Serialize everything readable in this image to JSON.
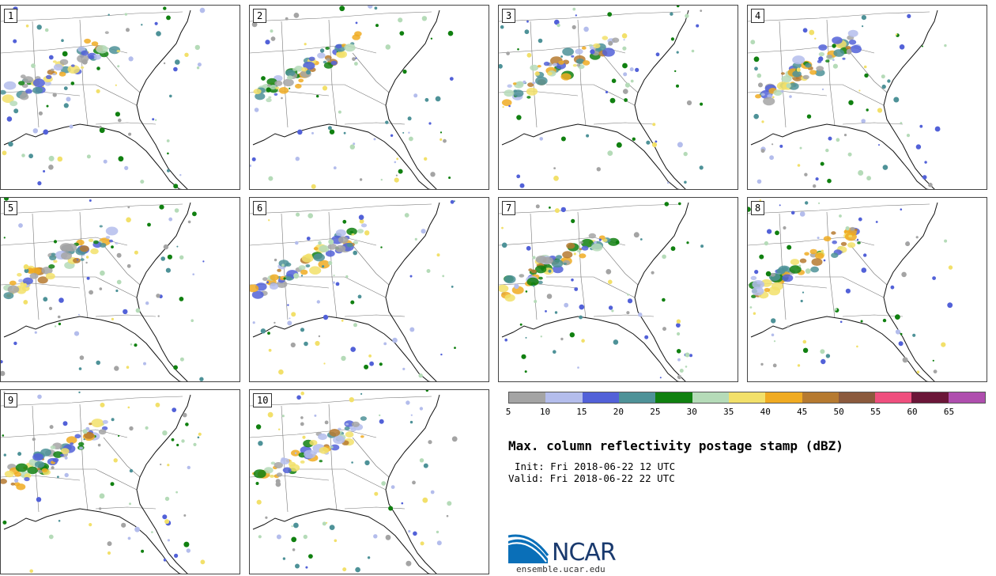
{
  "panels": [
    {
      "label": "1"
    },
    {
      "label": "2"
    },
    {
      "label": "3"
    },
    {
      "label": "4"
    },
    {
      "label": "5"
    },
    {
      "label": "6"
    },
    {
      "label": "7"
    },
    {
      "label": "8"
    },
    {
      "label": "9"
    },
    {
      "label": "10"
    }
  ],
  "legend": {
    "colors": [
      "#a4a4a4",
      "#b4bdec",
      "#5261d8",
      "#4e9298",
      "#108010",
      "#b5dbb8",
      "#f2e06a",
      "#f0ab22",
      "#b67a30",
      "#8b5a3d",
      "#ef4f7e",
      "#6b1638",
      "#af4eae"
    ],
    "ticks": [
      "5",
      "10",
      "15",
      "20",
      "25",
      "30",
      "35",
      "40",
      "45",
      "50",
      "55",
      "60",
      "65"
    ]
  },
  "title": "Max. column reflectivity postage stamp (dBZ)",
  "init": "Init: Fri 2018-06-22 12 UTC",
  "valid": "Valid: Fri 2018-06-22 22 UTC",
  "logo": {
    "text": "NCAR",
    "url": "ensemble.ucar.edu"
  }
}
